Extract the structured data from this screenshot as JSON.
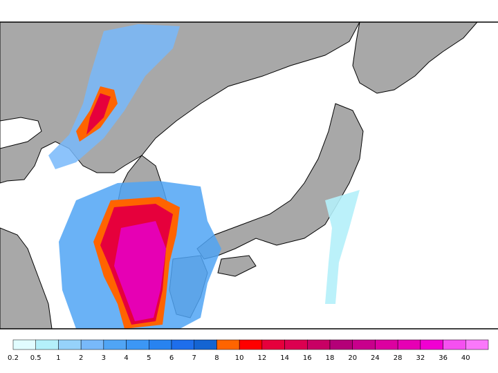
{
  "legend": {
    "ticks": [
      0.2,
      0.5,
      1,
      2,
      3,
      4,
      5,
      6,
      7,
      8,
      10,
      12,
      14,
      16,
      18,
      20,
      24,
      28,
      32,
      36,
      40
    ],
    "colors": [
      "#e1fcff",
      "#b4f0fa",
      "#96d2fa",
      "#78b9fa",
      "#50a5f5",
      "#3c97f5",
      "#2883f0",
      "#1e6eeb",
      "#1464d2",
      "#ff6400",
      "#ff0000",
      "#e6003c",
      "#dc0050",
      "#c80064",
      "#b40078",
      "#c8008c",
      "#dc00a0",
      "#e600b4",
      "#f000d2",
      "#f550f0",
      "#fa78fa"
    ]
  }
}
